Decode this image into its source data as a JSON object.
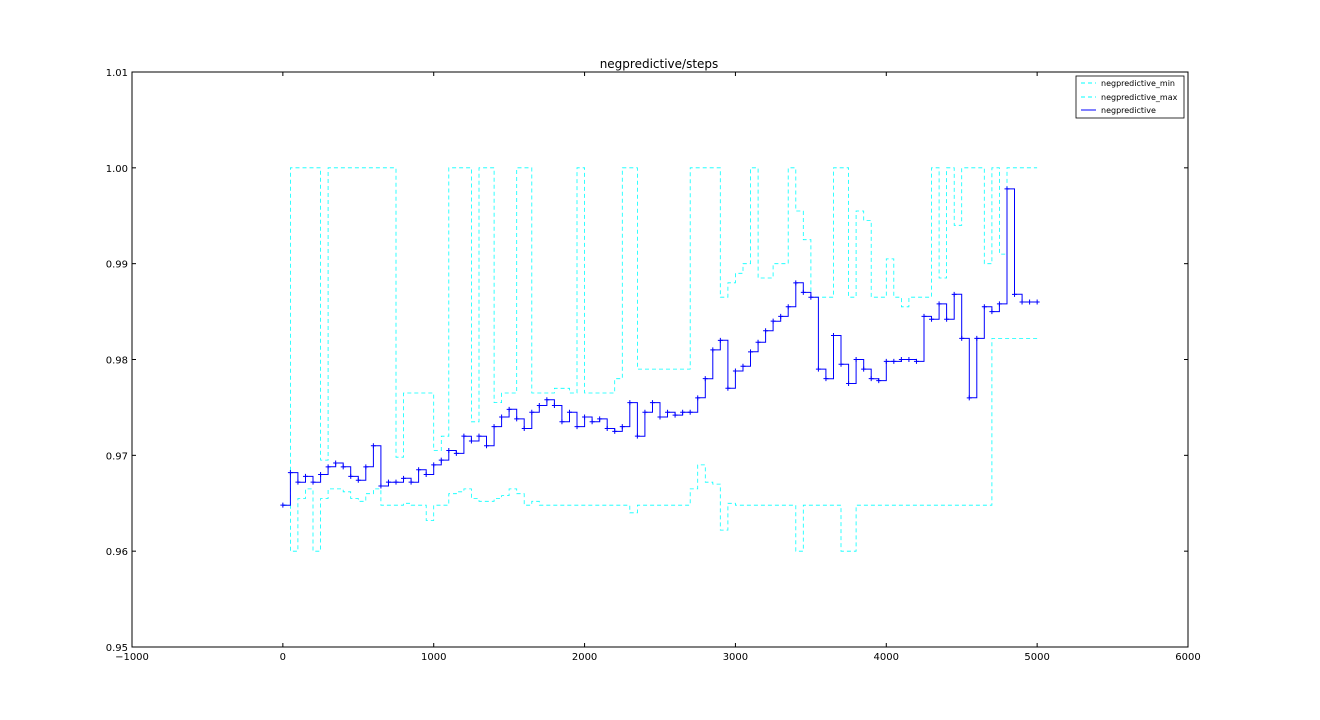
{
  "chart_data": {
    "type": "line",
    "title": "negpredictive/steps",
    "xlabel": "",
    "ylabel": "",
    "xlim": [
      -1000,
      6000
    ],
    "ylim": [
      0.95,
      1.01
    ],
    "x_ticks": [
      -1000,
      0,
      1000,
      2000,
      3000,
      4000,
      5000,
      6000
    ],
    "x_tick_labels": [
      "−1000",
      "0",
      "1000",
      "2000",
      "3000",
      "4000",
      "5000",
      "6000"
    ],
    "y_ticks": [
      0.95,
      0.96,
      0.97,
      0.98,
      0.99,
      1.0,
      1.01
    ],
    "y_tick_labels": [
      "0.95",
      "0.96",
      "0.97",
      "0.98",
      "0.99",
      "1.00",
      "1.01"
    ],
    "grid": false,
    "legend_position": "top-right",
    "legend": [
      "negpredictive_min",
      "negpredictive_max",
      "negpredictive"
    ],
    "series": [
      {
        "name": "negpredictive",
        "color": "#0000ff",
        "style": "solid-with-plus-markers",
        "x": [
          0,
          50,
          100,
          150,
          200,
          250,
          300,
          350,
          400,
          450,
          500,
          550,
          600,
          650,
          700,
          750,
          800,
          850,
          900,
          950,
          1000,
          1050,
          1100,
          1150,
          1200,
          1250,
          1300,
          1350,
          1400,
          1450,
          1500,
          1550,
          1600,
          1650,
          1700,
          1750,
          1800,
          1850,
          1900,
          1950,
          2000,
          2050,
          2100,
          2150,
          2200,
          2250,
          2300,
          2350,
          2400,
          2450,
          2500,
          2550,
          2600,
          2650,
          2700,
          2750,
          2800,
          2850,
          2900,
          2950,
          3000,
          3050,
          3100,
          3150,
          3200,
          3250,
          3300,
          3350,
          3400,
          3450,
          3500,
          3550,
          3600,
          3650,
          3700,
          3750,
          3800,
          3850,
          3900,
          3950,
          4000,
          4050,
          4100,
          4150,
          4200,
          4250,
          4300,
          4350,
          4400,
          4450,
          4500,
          4550,
          4600,
          4650,
          4700,
          4750,
          4800,
          4850,
          4900,
          4950,
          5000
        ],
        "values": [
          0.9648,
          0.9682,
          0.9672,
          0.9678,
          0.9672,
          0.968,
          0.9688,
          0.9692,
          0.9688,
          0.9678,
          0.9674,
          0.9688,
          0.971,
          0.9668,
          0.9672,
          0.9672,
          0.9676,
          0.9672,
          0.9685,
          0.968,
          0.969,
          0.9695,
          0.9705,
          0.9702,
          0.972,
          0.9715,
          0.972,
          0.971,
          0.973,
          0.974,
          0.9748,
          0.9738,
          0.9728,
          0.9745,
          0.9752,
          0.9758,
          0.9752,
          0.9735,
          0.9745,
          0.973,
          0.974,
          0.9735,
          0.9738,
          0.9728,
          0.9725,
          0.973,
          0.9755,
          0.972,
          0.9745,
          0.9755,
          0.974,
          0.9745,
          0.9742,
          0.9745,
          0.9745,
          0.976,
          0.978,
          0.981,
          0.982,
          0.977,
          0.9788,
          0.9793,
          0.9808,
          0.9818,
          0.983,
          0.984,
          0.9845,
          0.9855,
          0.988,
          0.987,
          0.9865,
          0.979,
          0.978,
          0.9825,
          0.9795,
          0.9775,
          0.98,
          0.979,
          0.978,
          0.9778,
          0.9798,
          0.9798,
          0.98,
          0.98,
          0.9798,
          0.9845,
          0.9842,
          0.9858,
          0.9842,
          0.9868,
          0.9822,
          0.976,
          0.9822,
          0.9855,
          0.985,
          0.9858,
          0.9978,
          0.9868,
          0.986,
          0.986,
          0.986
        ]
      },
      {
        "name": "negpredictive_min",
        "color": "#00ffff",
        "style": "dashed",
        "x": [
          0,
          50,
          100,
          150,
          200,
          250,
          300,
          350,
          400,
          450,
          500,
          550,
          600,
          650,
          700,
          750,
          800,
          850,
          900,
          950,
          1000,
          1050,
          1100,
          1150,
          1200,
          1250,
          1300,
          1350,
          1400,
          1450,
          1500,
          1550,
          1600,
          1650,
          1700,
          1750,
          1800,
          1850,
          1900,
          1950,
          2000,
          2050,
          2100,
          2150,
          2200,
          2250,
          2300,
          2350,
          2400,
          2450,
          2500,
          2550,
          2600,
          2650,
          2700,
          2750,
          2800,
          2850,
          2900,
          2950,
          3000,
          3050,
          3100,
          3150,
          3200,
          3250,
          3300,
          3350,
          3400,
          3450,
          3500,
          3550,
          3600,
          3650,
          3700,
          3750,
          3800,
          3850,
          3900,
          3950,
          4000,
          4050,
          4100,
          4150,
          4200,
          4250,
          4300,
          4350,
          4400,
          4450,
          4500,
          4550,
          4600,
          4650,
          4700,
          4750,
          4800,
          4850,
          4900,
          4950,
          5000
        ],
        "values": [
          0.9648,
          0.96,
          0.9655,
          0.9665,
          0.96,
          0.9655,
          0.9665,
          0.9665,
          0.9662,
          0.9655,
          0.9652,
          0.966,
          0.9665,
          0.9648,
          0.9648,
          0.9648,
          0.965,
          0.9648,
          0.9648,
          0.9632,
          0.9648,
          0.9648,
          0.966,
          0.9662,
          0.9665,
          0.9655,
          0.9652,
          0.9652,
          0.9655,
          0.9658,
          0.9665,
          0.966,
          0.9648,
          0.9652,
          0.9648,
          0.9648,
          0.9648,
          0.9648,
          0.9648,
          0.9648,
          0.9648,
          0.9648,
          0.9648,
          0.9648,
          0.9648,
          0.9648,
          0.964,
          0.9648,
          0.9648,
          0.9648,
          0.9648,
          0.9648,
          0.9648,
          0.9648,
          0.9665,
          0.969,
          0.9672,
          0.967,
          0.9622,
          0.965,
          0.9648,
          0.9648,
          0.9648,
          0.9648,
          0.9648,
          0.9648,
          0.9648,
          0.9648,
          0.96,
          0.9648,
          0.9648,
          0.9648,
          0.9648,
          0.9648,
          0.96,
          0.96,
          0.9648,
          0.9648,
          0.9648,
          0.9648,
          0.9648,
          0.9648,
          0.9648,
          0.9648,
          0.9648,
          0.9648,
          0.9648,
          0.9648,
          0.9648,
          0.9648,
          0.9648,
          0.9648,
          0.9648,
          0.9648,
          0.9822,
          0.9822,
          0.9822,
          0.9822,
          0.9822,
          0.9822,
          0.9822
        ]
      },
      {
        "name": "negpredictive_max",
        "color": "#00ffff",
        "style": "dashed",
        "x": [
          0,
          50,
          100,
          150,
          200,
          250,
          300,
          350,
          400,
          450,
          500,
          550,
          600,
          650,
          700,
          750,
          800,
          850,
          900,
          950,
          1000,
          1050,
          1100,
          1150,
          1200,
          1250,
          1300,
          1350,
          1400,
          1450,
          1500,
          1550,
          1600,
          1650,
          1700,
          1750,
          1800,
          1850,
          1900,
          1950,
          2000,
          2050,
          2100,
          2150,
          2200,
          2250,
          2300,
          2350,
          2400,
          2450,
          2500,
          2550,
          2600,
          2650,
          2700,
          2750,
          2800,
          2850,
          2900,
          2950,
          3000,
          3050,
          3100,
          3150,
          3200,
          3250,
          3300,
          3350,
          3400,
          3450,
          3500,
          3550,
          3600,
          3650,
          3700,
          3750,
          3800,
          3850,
          3900,
          3950,
          4000,
          4050,
          4100,
          4150,
          4200,
          4250,
          4300,
          4350,
          4400,
          4450,
          4500,
          4550,
          4600,
          4650,
          4700,
          4750,
          4800,
          4850,
          4900,
          4950,
          5000
        ],
        "values": [
          0.9648,
          1.0,
          1.0,
          1.0,
          1.0,
          0.9695,
          1.0,
          1.0,
          1.0,
          1.0,
          1.0,
          1.0,
          1.0,
          1.0,
          1.0,
          0.9698,
          0.9765,
          0.9765,
          0.9765,
          0.9765,
          0.9705,
          0.972,
          1.0,
          1.0,
          1.0,
          0.9735,
          1.0,
          1.0,
          0.9755,
          0.9765,
          0.9765,
          1.0,
          1.0,
          0.9765,
          0.9765,
          0.9765,
          0.977,
          0.977,
          0.9765,
          1.0,
          0.9765,
          0.9765,
          0.9765,
          0.9765,
          0.978,
          1.0,
          1.0,
          0.979,
          0.979,
          0.979,
          0.979,
          0.979,
          0.979,
          0.979,
          1.0,
          1.0,
          1.0,
          1.0,
          0.9865,
          0.988,
          0.989,
          0.99,
          1.0,
          0.9885,
          0.9885,
          0.99,
          0.99,
          1.0,
          0.9955,
          0.9925,
          0.9865,
          0.9865,
          0.9865,
          1.0,
          1.0,
          0.9865,
          0.9955,
          0.9945,
          0.9865,
          0.9865,
          0.9905,
          0.9865,
          0.9855,
          0.9865,
          0.9865,
          0.9865,
          1.0,
          0.9885,
          1.0,
          0.994,
          1.0,
          1.0,
          1.0,
          0.99,
          1.0,
          0.991,
          1.0,
          1.0,
          1.0,
          1.0,
          1.0
        ]
      }
    ]
  }
}
